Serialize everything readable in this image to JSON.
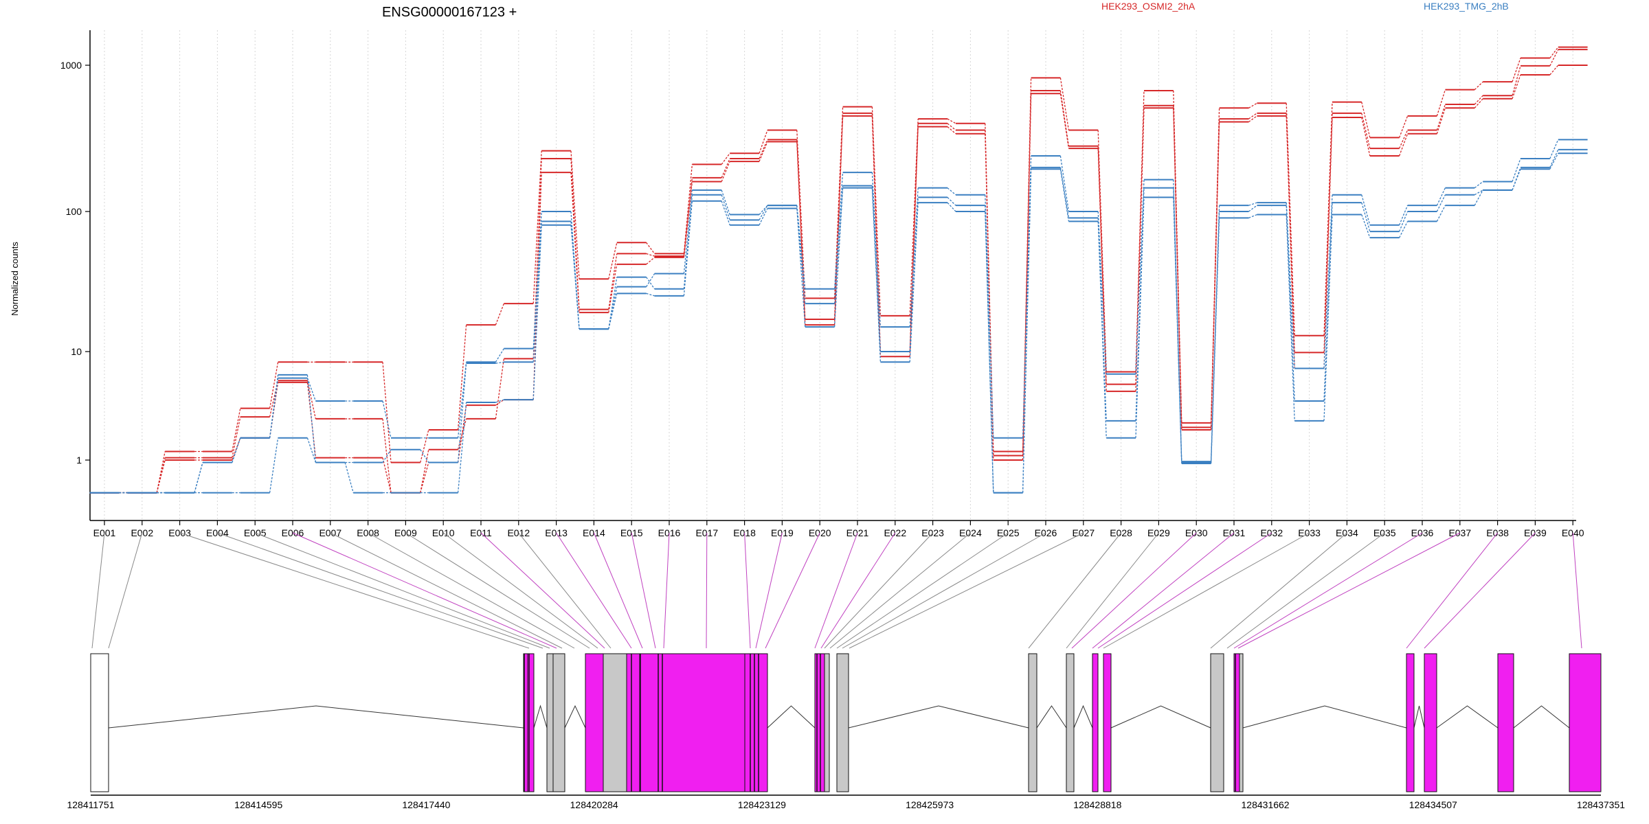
{
  "chart_data": {
    "type": "line",
    "title": "ENSG00000167123 +",
    "ylabel": "Normalized counts",
    "xlabel": "",
    "y_scale": "log",
    "ylim": [
      0.5,
      1700
    ],
    "y_ticks": [
      1,
      10,
      100,
      1000
    ],
    "y_tick_labels": [
      "1",
      "10",
      "100",
      "1000"
    ],
    "grid": "vertical dotted lines at exon bins",
    "legend_position": "top",
    "colors": {
      "HEK293_OSMI2_2hA": "#d62728",
      "HEK293_TMG_2hB": "#3a7fc1",
      "exon_counting": "#f01ff0",
      "exon_other": "#c8c8c8"
    },
    "categories": [
      "E001",
      "E002",
      "E003",
      "E004",
      "E005",
      "E006",
      "E007",
      "E008",
      "E009",
      "E010",
      "E011",
      "E012",
      "E013",
      "E014",
      "E015",
      "E016",
      "E017",
      "E018",
      "E019",
      "E020",
      "E021",
      "E022",
      "E023",
      "E024",
      "E025",
      "E026",
      "E027",
      "E028",
      "E029",
      "E030",
      "E031",
      "E032",
      "E033",
      "E034",
      "E035",
      "E036",
      "E037",
      "E038",
      "E039",
      "E040"
    ],
    "series": [
      {
        "name": "HEK293_OSMI2_2hA",
        "values": [
          0.5,
          0.5,
          1.2,
          1.2,
          3.0,
          8.0,
          8.0,
          8.0,
          0.95,
          1.9,
          15.5,
          22,
          260,
          33,
          60,
          50,
          210,
          250,
          360,
          24,
          520,
          18,
          430,
          400,
          1.2,
          820,
          360,
          6.5,
          670,
          2.2,
          510,
          550,
          13,
          560,
          320,
          450,
          680,
          770,
          1120,
          1330
        ]
      },
      {
        "name": "HEK293_OSMI2_2hA",
        "values": [
          0.5,
          0.5,
          1.05,
          1.05,
          2.5,
          5.4,
          2.4,
          2.4,
          0.5,
          1.25,
          2.4,
          8.6,
          230,
          20,
          50,
          48,
          170,
          230,
          310,
          17,
          470,
          10,
          400,
          360,
          1.1,
          670,
          280,
          5.0,
          530,
          2.0,
          430,
          470,
          9.8,
          470,
          270,
          360,
          540,
          620,
          990,
          1280
        ]
      },
      {
        "name": "HEK293_OSMI2_2hA",
        "values": [
          0.5,
          0.5,
          1.0,
          1.0,
          1.6,
          5.2,
          1.05,
          1.05,
          0.5,
          0.95,
          3.2,
          3.6,
          185,
          19,
          42,
          47,
          160,
          220,
          300,
          15.5,
          450,
          9,
          380,
          340,
          1.0,
          640,
          270,
          4.3,
          510,
          1.9,
          410,
          450,
          7,
          440,
          240,
          340,
          510,
          590,
          860,
          1000
        ]
      },
      {
        "name": "HEK293_TMG_2hB",
        "values": [
          0.5,
          0.5,
          0.5,
          0.95,
          1.6,
          5.7,
          3.5,
          3.5,
          1.6,
          1.6,
          8.0,
          10.5,
          100,
          14.5,
          29,
          36,
          140,
          95,
          110,
          28,
          185,
          15,
          145,
          130,
          1.6,
          240,
          100,
          6.2,
          165,
          0.97,
          110,
          115,
          7,
          130,
          80,
          110,
          145,
          160,
          230,
          310
        ]
      },
      {
        "name": "HEK293_TMG_2hB",
        "values": [
          0.5,
          0.5,
          0.5,
          0.95,
          1.6,
          6.1,
          0.95,
          0.95,
          1.25,
          0.95,
          7.8,
          8.0,
          85,
          14.5,
          34,
          28,
          130,
          87,
          110,
          22,
          150,
          10,
          125,
          110,
          0.5,
          200,
          90,
          2.3,
          145,
          0.95,
          100,
          110,
          3.5,
          115,
          72,
          100,
          130,
          140,
          200,
          265
        ]
      },
      {
        "name": "HEK293_TMG_2hB",
        "values": [
          0.5,
          0.5,
          0.5,
          0.5,
          0.5,
          1.6,
          0.95,
          0.5,
          0.5,
          0.5,
          3.4,
          3.6,
          80,
          14.5,
          26,
          25,
          118,
          80,
          105,
          15,
          145,
          8,
          115,
          100,
          0.5,
          195,
          85,
          1.6,
          125,
          0.93,
          90,
          95,
          2.3,
          95,
          65,
          85,
          110,
          140,
          195,
          250
        ]
      }
    ],
    "gene_model": {
      "coordinate_labels": [
        "128411751",
        "128414595",
        "128417440",
        "128420284",
        "128423129",
        "128425973",
        "128428818",
        "128431662",
        "128434507",
        "128437351"
      ],
      "connectors_to": [
        97,
        99,
        489,
        496,
        500,
        506,
        512,
        520,
        546,
        552,
        564,
        570,
        583,
        584,
        587,
        598,
        599,
        603,
        612,
        615,
        650,
        688,
        691,
        695,
        707,
        711,
        718,
        721,
        736,
        738,
        742,
        744,
        753,
        756,
        835,
        851,
        874,
        1002,
        1005,
        1010,
        1021,
        1023,
        1033,
        1175,
        1186,
        1267,
        1287,
        1360,
        1432
      ]
    }
  }
}
